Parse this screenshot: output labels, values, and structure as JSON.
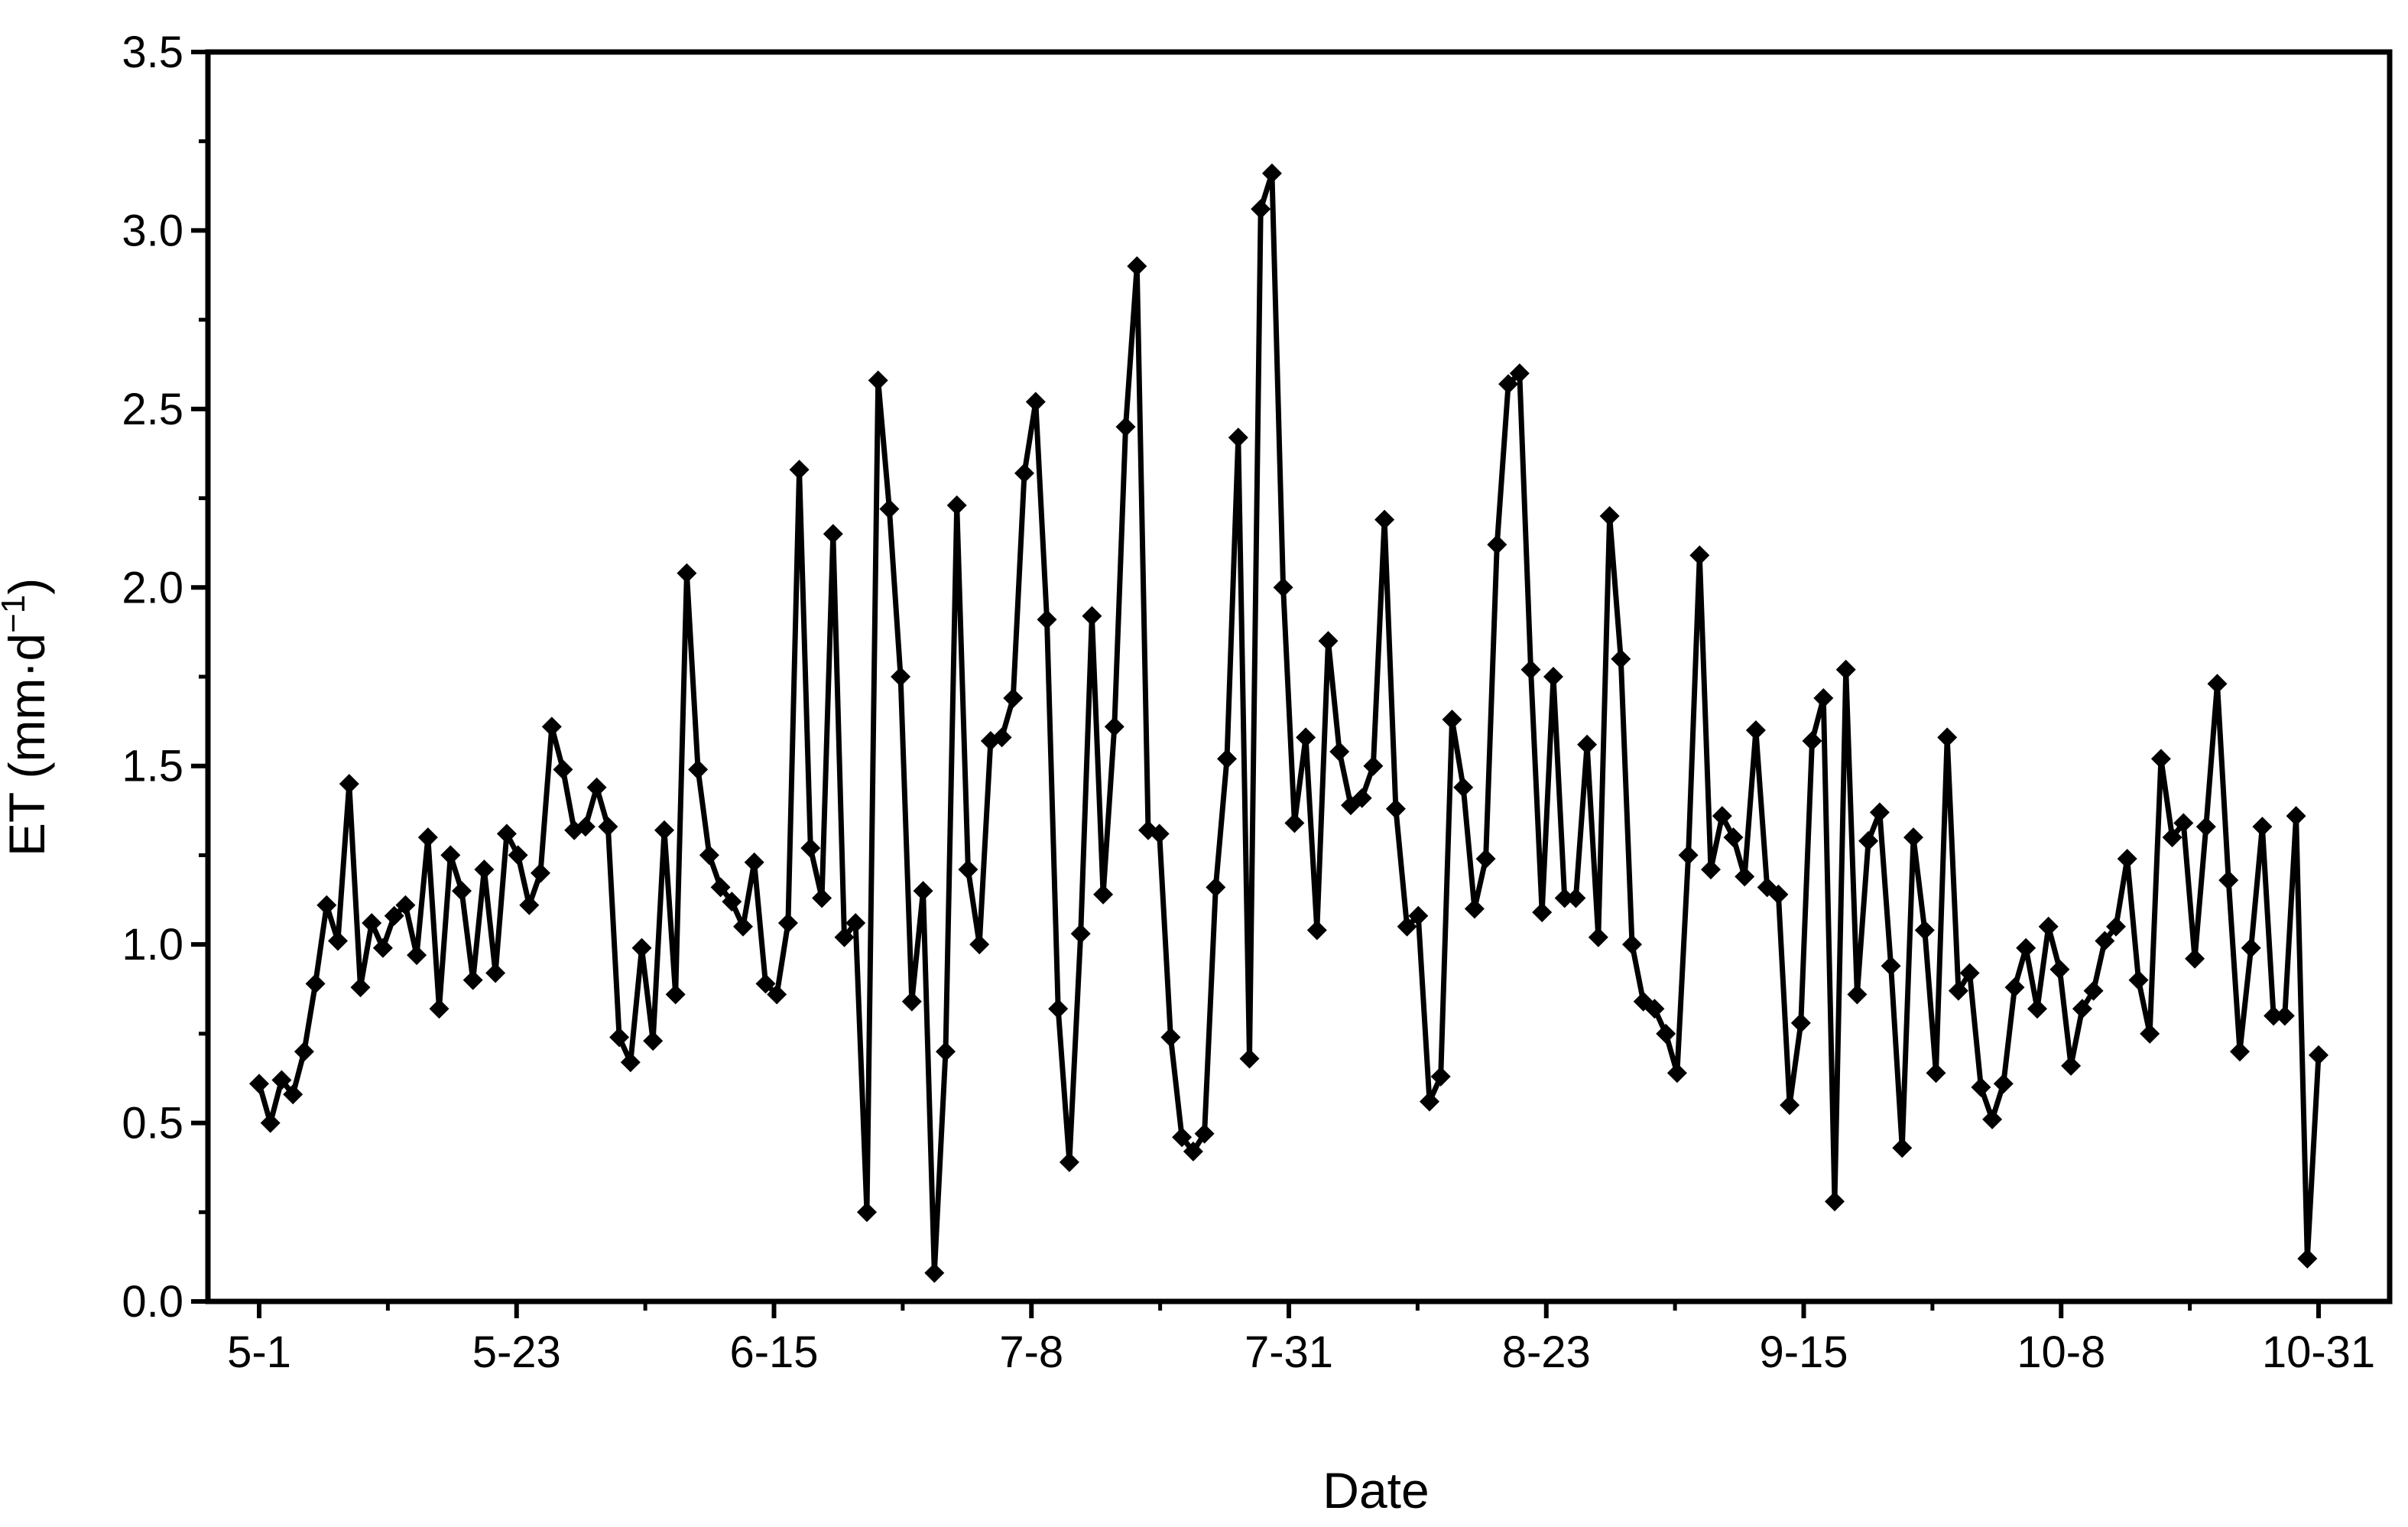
{
  "chart_data": {
    "type": "line",
    "xlabel": "Date",
    "ylabel": "ET (mm·d",
    "ylabel_sup": "−1",
    "ylabel_end": ")",
    "ylim": [
      0,
      3.5
    ],
    "y_ticks": [
      "0.0",
      "0.5",
      "1.0",
      "1.5",
      "2.0",
      "2.5",
      "3.0",
      "3.5"
    ],
    "x_start": "5-1",
    "x_end": "10-31",
    "x_ticks": [
      "5-1",
      "5-23",
      "6-15",
      "7-8",
      "7-31",
      "8-23",
      "9-15",
      "10-8",
      "10-31"
    ],
    "marker": "diamond",
    "line_color": "#000000",
    "grid": false,
    "series": [
      {
        "values": [
          0.61,
          0.5,
          0.62,
          0.58,
          0.7,
          0.89,
          1.11,
          1.01,
          1.45,
          0.88,
          1.06,
          0.99,
          1.08,
          1.11,
          0.97,
          1.3,
          0.82,
          1.25,
          1.15,
          0.9,
          1.21,
          0.92,
          1.31,
          1.25,
          1.11,
          1.2,
          1.61,
          1.49,
          1.32,
          1.33,
          1.44,
          1.33,
          0.74,
          0.67,
          0.99,
          0.73,
          1.32,
          0.86,
          2.04,
          1.49,
          1.25,
          1.16,
          1.12,
          1.05,
          1.23,
          0.89,
          0.86,
          1.06,
          2.33,
          1.27,
          1.13,
          2.15,
          1.02,
          1.06,
          0.25,
          2.58,
          2.22,
          1.75,
          0.84,
          1.15,
          0.08,
          0.7,
          2.23,
          1.21,
          1.0,
          1.57,
          1.58,
          1.69,
          2.32,
          2.52,
          1.91,
          0.82,
          0.39,
          1.03,
          1.92,
          1.14,
          1.61,
          2.45,
          2.9,
          1.32,
          1.31,
          0.74,
          0.46,
          0.42,
          0.47,
          1.16,
          1.52,
          2.42,
          0.68,
          3.06,
          3.16,
          2.0,
          1.34,
          1.58,
          1.04,
          1.85,
          1.54,
          1.39,
          1.41,
          1.5,
          2.19,
          1.38,
          1.05,
          1.08,
          0.56,
          0.63,
          1.63,
          1.44,
          1.1,
          1.24,
          2.12,
          2.57,
          2.6,
          1.77,
          1.09,
          1.75,
          1.13,
          1.13,
          1.56,
          1.02,
          2.2,
          1.8,
          1.0,
          0.84,
          0.82,
          0.75,
          0.64,
          1.25,
          2.09,
          1.21,
          1.36,
          1.3,
          1.19,
          1.6,
          1.16,
          1.14,
          0.55,
          0.78,
          1.57,
          1.69,
          0.28,
          1.77,
          0.86,
          1.29,
          1.37,
          0.94,
          0.43,
          1.3,
          1.04,
          0.64,
          1.58,
          0.87,
          0.92,
          0.6,
          0.51,
          0.61,
          0.88,
          0.99,
          0.82,
          1.05,
          0.93,
          0.66,
          0.82,
          0.87,
          1.01,
          1.05,
          1.24,
          0.9,
          0.75,
          1.52,
          1.3,
          1.34,
          0.96,
          1.33,
          1.73,
          1.18,
          0.7,
          0.99,
          1.33,
          0.8,
          0.8,
          1.36,
          0.12,
          0.69
        ]
      }
    ]
  }
}
